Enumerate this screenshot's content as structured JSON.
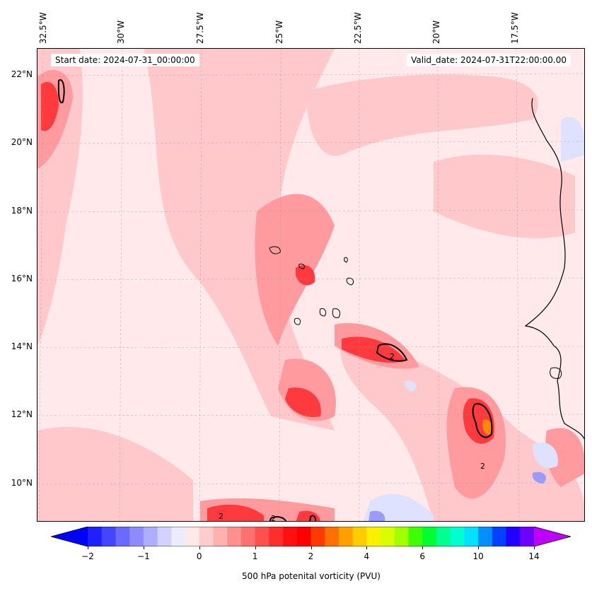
{
  "map": {
    "start_date": "Start date: 2024-07-31_00:00:00",
    "valid_date": "Valid_date: 2024-07-31T22:00:00.00",
    "lon_labels": [
      "32.5°W",
      "30°W",
      "27.5°W",
      "25°W",
      "22.5°W",
      "20°W",
      "17.5°W"
    ],
    "lat_labels": [
      "22°N",
      "20°N",
      "18°N",
      "16°N",
      "14°N",
      "12°N",
      "10°N"
    ],
    "contour_label": "2",
    "grid": true,
    "colors": {
      "background": "#ffe9ea",
      "light_pink": "#ffc9cc",
      "pink": "#ff9a9e",
      "red_mid": "#ff5a5f",
      "red": "#ff1a1a",
      "orange": "#ff8a00",
      "light_blue": "#e6e9ff",
      "blue": "#8c8cff"
    }
  },
  "colorbar": {
    "label": "500 hPa potenital vorticity (PVU)",
    "tick_labels": [
      "−2",
      "−1",
      "0",
      "1",
      "2",
      "4",
      "6",
      "10",
      "14"
    ],
    "colors": [
      "#0000ff",
      "#2020ff",
      "#4545ff",
      "#6a6aff",
      "#8c8cff",
      "#aeaeff",
      "#d2d2ff",
      "#ececff",
      "#ffe8e8",
      "#ffcccc",
      "#ffb0b0",
      "#ff9090",
      "#ff7070",
      "#ff5050",
      "#ff2e2e",
      "#ff1010",
      "#ff0000",
      "#ff3a00",
      "#ff7000",
      "#ffa000",
      "#ffcc00",
      "#fff000",
      "#d8ff00",
      "#a0ff00",
      "#40ff00",
      "#00ff30",
      "#00ff90",
      "#00ffd0",
      "#00e0ff",
      "#0090ff",
      "#0040ff",
      "#2000ff",
      "#7000ff",
      "#c000ff"
    ]
  }
}
